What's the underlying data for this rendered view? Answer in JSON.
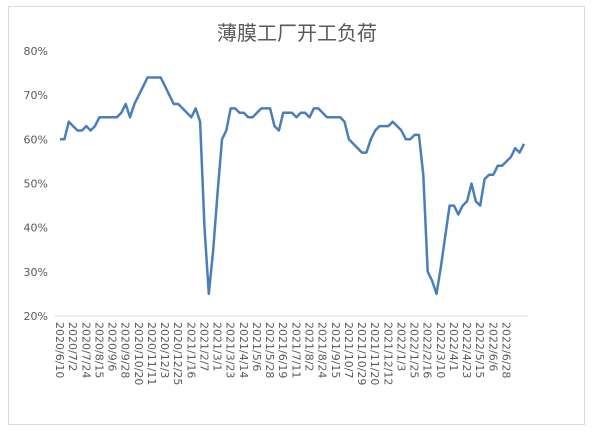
{
  "chart_data": {
    "type": "line",
    "title": "薄膜工厂开工负荷",
    "categories": [
      "2020/6/10",
      null,
      null,
      "2020/7/2",
      null,
      null,
      "2020/7/24",
      null,
      null,
      "2020/8/15",
      null,
      null,
      "2020/9/6",
      null,
      null,
      "2020/9/28",
      null,
      null,
      "2020/10/20",
      null,
      null,
      "2020/11/11",
      null,
      null,
      "2020/12/3",
      null,
      null,
      "2020/12/25",
      null,
      null,
      "2021/1/16",
      null,
      null,
      "2021/2/7",
      null,
      null,
      "2021/3/1",
      null,
      null,
      "2021/3/23",
      null,
      null,
      "2021/4/14",
      null,
      null,
      "2021/5/6",
      null,
      null,
      "2021/5/28",
      null,
      null,
      "2021/6/19",
      null,
      null,
      "2021/7/11",
      null,
      null,
      "2021/8/2",
      null,
      null,
      "2021/8/24",
      null,
      null,
      "2021/9/15",
      null,
      null,
      "2021/10/7",
      null,
      null,
      "2021/10/29",
      null,
      null,
      "2021/11/20",
      null,
      null,
      "2021/12/12",
      null,
      null,
      "2022/1/3",
      null,
      null,
      "2022/1/25",
      null,
      null,
      "2022/2/16",
      null,
      null,
      "2022/3/10",
      null,
      null,
      "2022/4/1",
      null,
      null,
      "2022/4/23",
      null,
      null,
      "2022/5/15",
      null,
      null,
      "2022/6/6",
      null,
      null,
      "2022/6/28",
      null,
      null,
      null,
      null
    ],
    "series": [
      {
        "color": "#4a7ebb",
        "values": [
          60,
          60,
          64,
          63,
          62,
          62,
          63,
          62,
          63,
          65,
          65,
          65,
          65,
          65,
          66,
          68,
          65,
          68,
          70,
          72,
          74,
          74,
          74,
          74,
          72,
          70,
          68,
          68,
          67,
          66,
          65,
          67,
          64,
          40,
          25,
          35,
          48,
          60,
          62,
          67,
          67,
          66,
          66,
          65,
          65,
          66,
          67,
          67,
          67,
          63,
          62,
          66,
          66,
          66,
          65,
          66,
          66,
          65,
          67,
          67,
          66,
          65,
          65,
          65,
          65,
          64,
          60,
          59,
          58,
          57,
          57,
          60,
          62,
          63,
          63,
          63,
          64,
          63,
          62,
          60,
          60,
          61,
          61,
          52,
          30,
          28,
          25,
          31,
          38,
          45,
          45,
          43,
          45,
          46,
          50,
          46,
          45,
          51,
          52,
          52,
          54,
          54,
          55,
          56,
          58,
          57,
          59
        ]
      }
    ],
    "ylim": [
      20,
      80
    ],
    "yticks": [
      {
        "value": 20,
        "label": "20%"
      },
      {
        "value": 30,
        "label": "30%"
      },
      {
        "value": 40,
        "label": "40%"
      },
      {
        "value": 50,
        "label": "50%"
      },
      {
        "value": 60,
        "label": "60%"
      },
      {
        "value": 70,
        "label": "70%"
      },
      {
        "value": 80,
        "label": "80%"
      }
    ]
  }
}
